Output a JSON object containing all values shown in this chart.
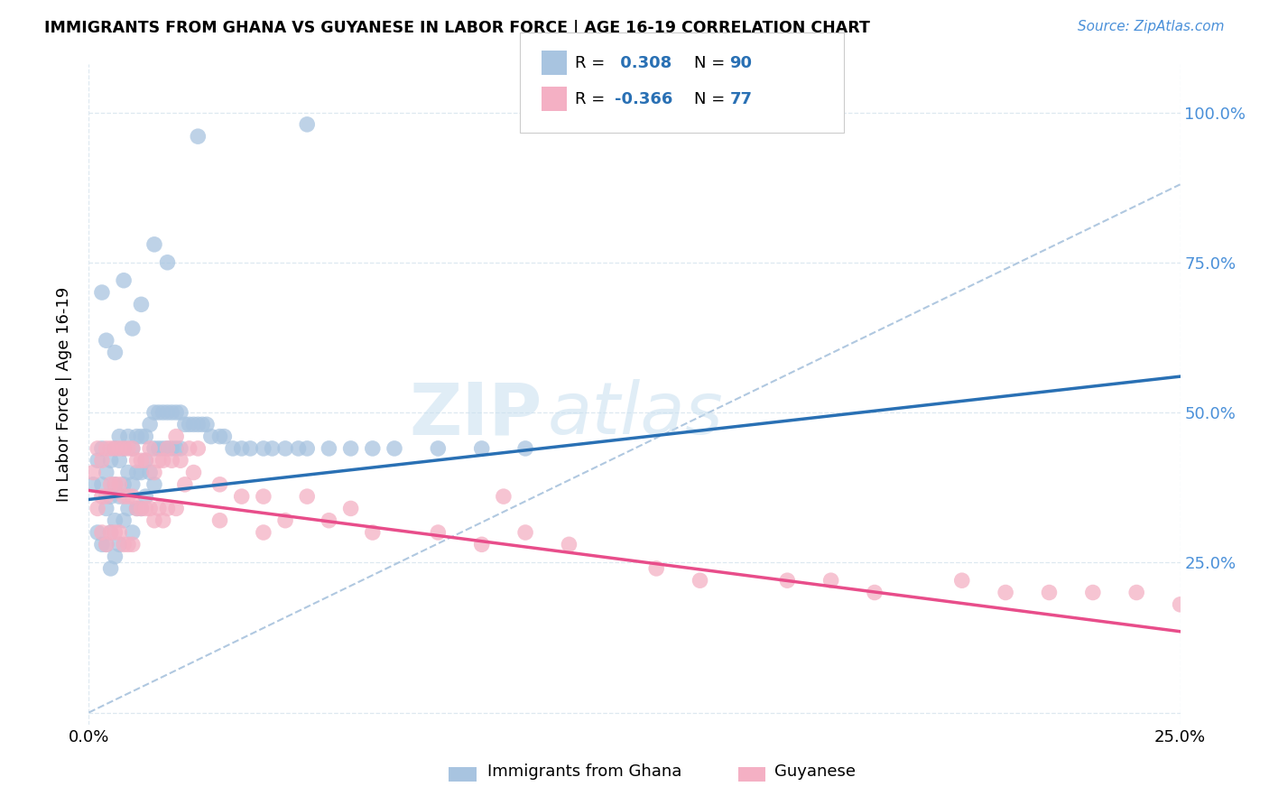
{
  "title": "IMMIGRANTS FROM GHANA VS GUYANESE IN LABOR FORCE | AGE 16-19 CORRELATION CHART",
  "source_text": "Source: ZipAtlas.com",
  "ylabel": "In Labor Force | Age 16-19",
  "ghana_R": 0.308,
  "ghana_N": 90,
  "guyanese_R": -0.366,
  "guyanese_N": 77,
  "ghana_color": "#a8c4e0",
  "ghana_line_color": "#2970b4",
  "guyanese_color": "#f4b0c4",
  "guyanese_line_color": "#e84d8a",
  "dashed_line_color": "#b0c8e0",
  "watermark_zip": "ZIP",
  "watermark_atlas": "atlas",
  "xlim": [
    0.0,
    0.25
  ],
  "ylim": [
    -0.02,
    1.08
  ],
  "ytick_positions": [
    0.0,
    0.25,
    0.5,
    0.75,
    1.0
  ],
  "right_ytick_labels": [
    "",
    "25.0%",
    "50.0%",
    "75.0%",
    "100.0%"
  ],
  "xtick_positions": [
    0.0,
    0.25
  ],
  "xtick_labels": [
    "0.0%",
    "25.0%"
  ],
  "ghana_line_x": [
    0.0,
    0.25
  ],
  "ghana_line_y": [
    0.355,
    0.56
  ],
  "guyanese_line_x": [
    0.0,
    0.25
  ],
  "guyanese_line_y": [
    0.37,
    0.135
  ],
  "dashed_line_x": [
    0.0,
    0.25
  ],
  "dashed_line_y": [
    0.0,
    0.88
  ],
  "ghana_scatter_x": [
    0.001,
    0.002,
    0.002,
    0.003,
    0.003,
    0.003,
    0.004,
    0.004,
    0.004,
    0.005,
    0.005,
    0.005,
    0.005,
    0.006,
    0.006,
    0.006,
    0.006,
    0.007,
    0.007,
    0.007,
    0.007,
    0.008,
    0.008,
    0.008,
    0.009,
    0.009,
    0.009,
    0.01,
    0.01,
    0.01,
    0.011,
    0.011,
    0.011,
    0.012,
    0.012,
    0.012,
    0.013,
    0.013,
    0.013,
    0.014,
    0.014,
    0.015,
    0.015,
    0.015,
    0.016,
    0.016,
    0.017,
    0.017,
    0.018,
    0.018,
    0.019,
    0.019,
    0.02,
    0.02,
    0.021,
    0.021,
    0.022,
    0.023,
    0.024,
    0.025,
    0.026,
    0.027,
    0.028,
    0.03,
    0.031,
    0.033,
    0.035,
    0.037,
    0.04,
    0.042,
    0.045,
    0.048,
    0.05,
    0.055,
    0.06,
    0.065,
    0.07,
    0.08,
    0.09,
    0.1,
    0.003,
    0.008,
    0.012,
    0.015,
    0.018,
    0.004,
    0.006,
    0.01,
    0.025,
    0.05
  ],
  "ghana_scatter_y": [
    0.38,
    0.42,
    0.3,
    0.44,
    0.38,
    0.28,
    0.4,
    0.34,
    0.28,
    0.42,
    0.36,
    0.3,
    0.24,
    0.44,
    0.38,
    0.32,
    0.26,
    0.46,
    0.42,
    0.36,
    0.28,
    0.44,
    0.38,
    0.32,
    0.46,
    0.4,
    0.34,
    0.44,
    0.38,
    0.3,
    0.46,
    0.4,
    0.34,
    0.46,
    0.4,
    0.34,
    0.46,
    0.42,
    0.36,
    0.48,
    0.4,
    0.5,
    0.44,
    0.38,
    0.5,
    0.44,
    0.5,
    0.44,
    0.5,
    0.44,
    0.5,
    0.44,
    0.5,
    0.44,
    0.5,
    0.44,
    0.48,
    0.48,
    0.48,
    0.48,
    0.48,
    0.48,
    0.46,
    0.46,
    0.46,
    0.44,
    0.44,
    0.44,
    0.44,
    0.44,
    0.44,
    0.44,
    0.44,
    0.44,
    0.44,
    0.44,
    0.44,
    0.44,
    0.44,
    0.44,
    0.7,
    0.72,
    0.68,
    0.78,
    0.75,
    0.62,
    0.6,
    0.64,
    0.96,
    0.98
  ],
  "guyanese_scatter_x": [
    0.001,
    0.002,
    0.002,
    0.003,
    0.003,
    0.003,
    0.004,
    0.004,
    0.004,
    0.005,
    0.005,
    0.005,
    0.006,
    0.006,
    0.006,
    0.007,
    0.007,
    0.007,
    0.008,
    0.008,
    0.008,
    0.009,
    0.009,
    0.009,
    0.01,
    0.01,
    0.01,
    0.011,
    0.011,
    0.012,
    0.012,
    0.013,
    0.013,
    0.014,
    0.014,
    0.015,
    0.015,
    0.016,
    0.016,
    0.017,
    0.017,
    0.018,
    0.018,
    0.019,
    0.02,
    0.02,
    0.021,
    0.022,
    0.023,
    0.024,
    0.025,
    0.03,
    0.03,
    0.035,
    0.04,
    0.04,
    0.045,
    0.05,
    0.055,
    0.06,
    0.065,
    0.08,
    0.09,
    0.095,
    0.1,
    0.11,
    0.13,
    0.14,
    0.16,
    0.17,
    0.18,
    0.2,
    0.21,
    0.22,
    0.23,
    0.24,
    0.25
  ],
  "guyanese_scatter_y": [
    0.4,
    0.44,
    0.34,
    0.42,
    0.36,
    0.3,
    0.44,
    0.36,
    0.28,
    0.44,
    0.38,
    0.3,
    0.44,
    0.38,
    0.3,
    0.44,
    0.38,
    0.3,
    0.44,
    0.36,
    0.28,
    0.44,
    0.36,
    0.28,
    0.44,
    0.36,
    0.28,
    0.42,
    0.34,
    0.42,
    0.34,
    0.42,
    0.34,
    0.44,
    0.34,
    0.4,
    0.32,
    0.42,
    0.34,
    0.42,
    0.32,
    0.44,
    0.34,
    0.42,
    0.46,
    0.34,
    0.42,
    0.38,
    0.44,
    0.4,
    0.44,
    0.38,
    0.32,
    0.36,
    0.36,
    0.3,
    0.32,
    0.36,
    0.32,
    0.34,
    0.3,
    0.3,
    0.28,
    0.36,
    0.3,
    0.28,
    0.24,
    0.22,
    0.22,
    0.22,
    0.2,
    0.22,
    0.2,
    0.2,
    0.2,
    0.2,
    0.18
  ]
}
